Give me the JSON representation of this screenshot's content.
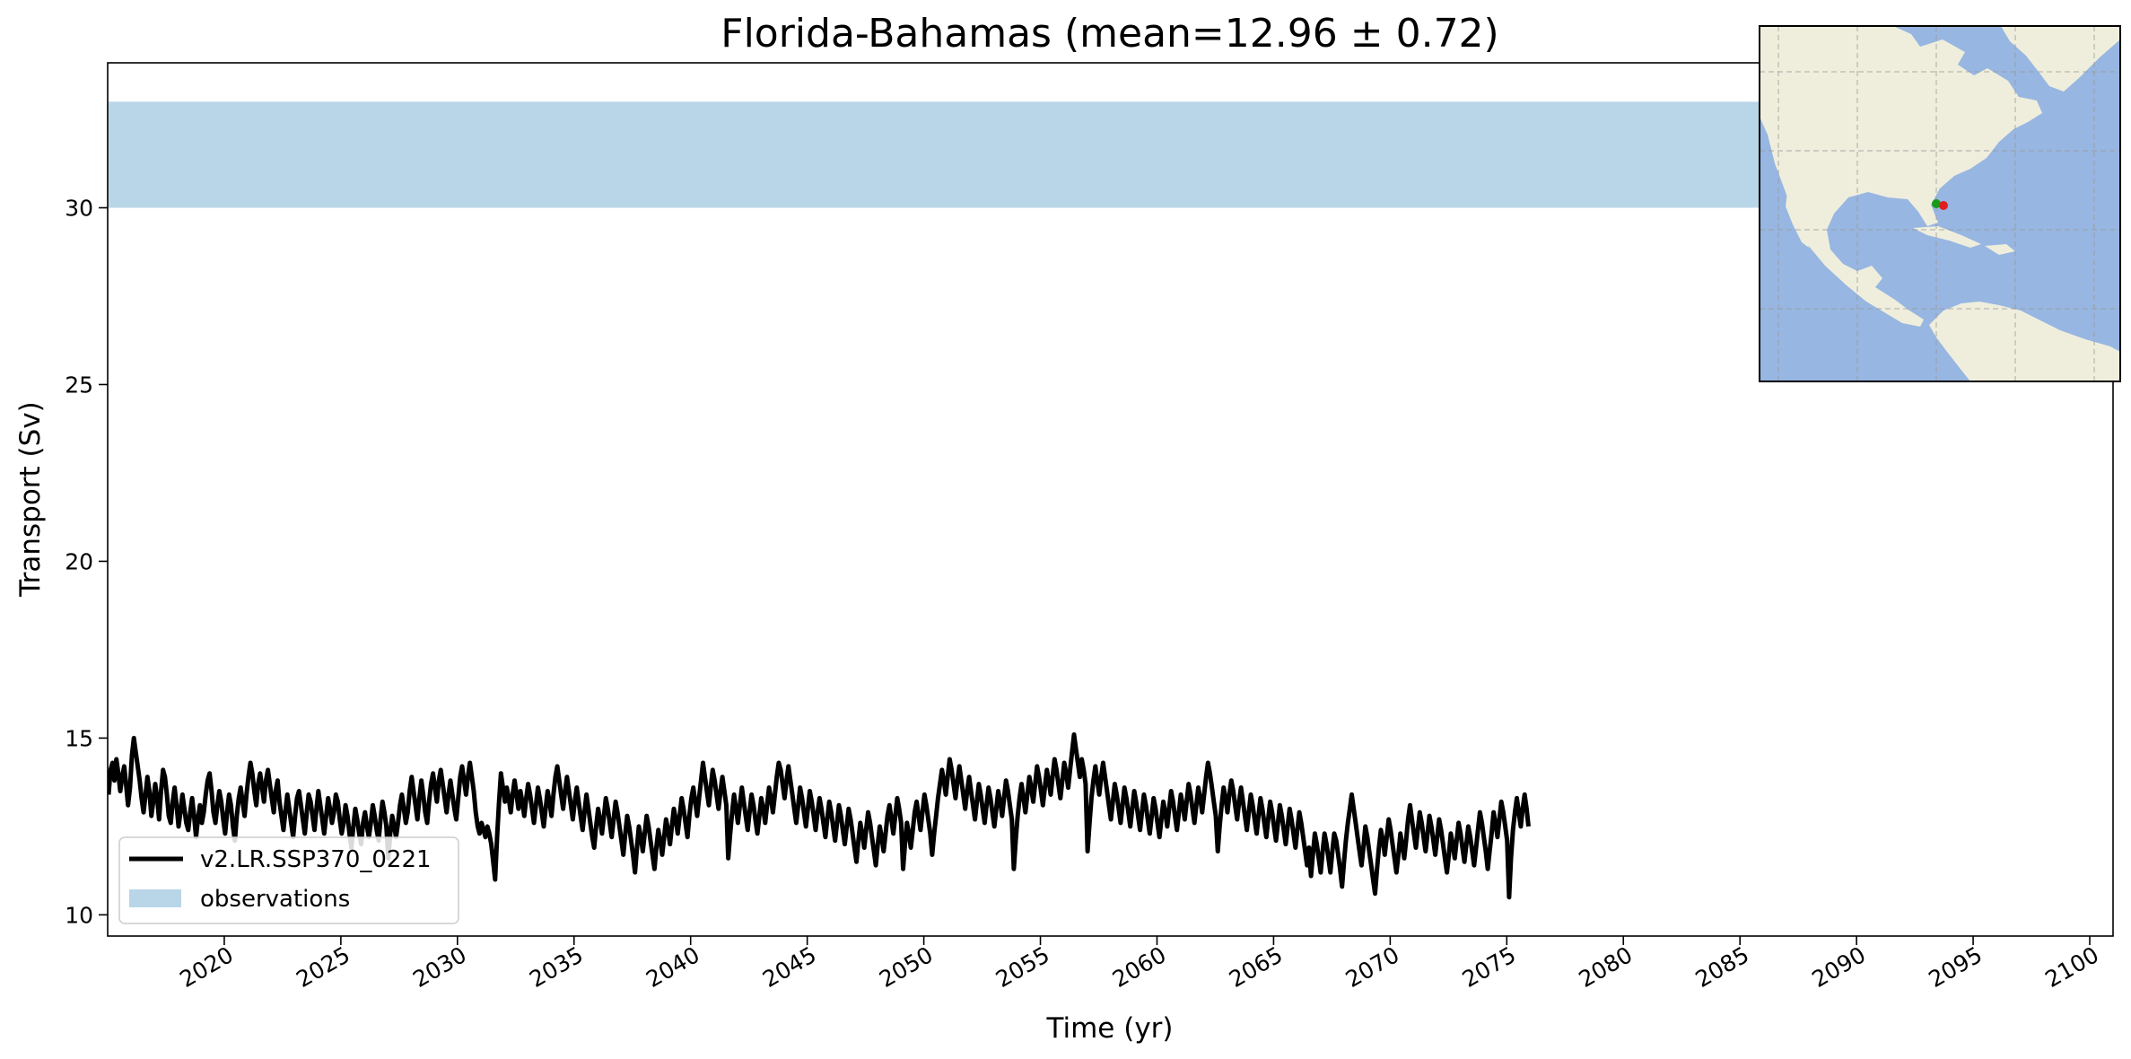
{
  "chart_data": {
    "type": "line",
    "title": "Florida-Bahamas (mean=12.96 ± 0.72)",
    "xlabel": "Time (yr)",
    "ylabel": "Transport (Sv)",
    "xlim": [
      2015,
      2101
    ],
    "ylim": [
      9.4,
      34.1
    ],
    "x_ticks": [
      2020,
      2025,
      2030,
      2035,
      2040,
      2045,
      2050,
      2055,
      2060,
      2065,
      2070,
      2075,
      2080,
      2085,
      2090,
      2095,
      2100
    ],
    "x_tick_labels": [
      "2020",
      "2025",
      "2030",
      "2035",
      "2040",
      "2045",
      "2050",
      "2055",
      "2060",
      "2065",
      "2070",
      "2075",
      "2080",
      "2085",
      "2090",
      "2095",
      "2100"
    ],
    "y_ticks": [
      10,
      15,
      20,
      25,
      30
    ],
    "y_tick_labels": [
      "10",
      "15",
      "20",
      "25",
      "30"
    ],
    "grid": false,
    "legend_position": "lower-left",
    "series": [
      {
        "name": "v2.LR.SSP370_0221",
        "color": "#000000",
        "x_start": 2015.04,
        "x_step": 0.0833,
        "values": [
          13.4,
          14.1,
          14.3,
          13.8,
          14.4,
          14.0,
          13.5,
          13.9,
          14.2,
          13.7,
          13.1,
          13.6,
          14.5,
          15.0,
          14.6,
          14.2,
          13.8,
          13.3,
          12.9,
          13.4,
          13.9,
          13.5,
          12.8,
          13.2,
          13.7,
          13.3,
          12.7,
          13.5,
          14.1,
          13.9,
          13.4,
          12.8,
          12.6,
          13.2,
          13.6,
          13.1,
          12.5,
          12.9,
          13.4,
          13.0,
          12.6,
          12.4,
          12.9,
          13.3,
          12.8,
          12.2,
          12.7,
          13.1,
          12.6,
          12.9,
          13.4,
          13.8,
          14.0,
          13.5,
          12.9,
          12.6,
          13.1,
          13.5,
          13.2,
          12.7,
          12.3,
          12.9,
          13.4,
          13.1,
          12.5,
          12.1,
          12.8,
          13.3,
          13.6,
          13.2,
          12.8,
          13.4,
          13.9,
          14.3,
          14.0,
          13.5,
          13.1,
          13.7,
          14.0,
          13.6,
          13.2,
          13.8,
          14.1,
          13.7,
          13.3,
          12.9,
          13.5,
          13.8,
          13.2,
          12.8,
          12.4,
          12.9,
          13.4,
          13.0,
          12.6,
          12.2,
          12.8,
          13.3,
          13.5,
          13.1,
          12.7,
          12.3,
          12.9,
          13.4,
          13.2,
          12.8,
          12.4,
          13.0,
          13.5,
          13.1,
          12.7,
          12.3,
          12.8,
          13.3,
          13.0,
          12.6,
          12.9,
          13.4,
          13.2,
          12.7,
          12.3,
          12.6,
          13.1,
          12.8,
          12.3,
          11.9,
          12.5,
          13.0,
          12.7,
          12.3,
          12.0,
          12.6,
          12.9,
          12.5,
          12.2,
          12.6,
          13.1,
          12.8,
          12.4,
          12.1,
          12.7,
          13.2,
          12.9,
          12.5,
          11.6,
          12.3,
          12.8,
          12.5,
          12.2,
          12.6,
          13.1,
          13.4,
          13.0,
          12.6,
          12.9,
          13.5,
          13.9,
          13.5,
          13.1,
          12.7,
          13.3,
          13.8,
          13.4,
          12.9,
          12.6,
          13.2,
          13.7,
          14.0,
          13.6,
          13.2,
          13.8,
          14.1,
          13.7,
          13.3,
          12.9,
          13.4,
          13.8,
          13.4,
          13.0,
          12.7,
          13.3,
          13.9,
          14.2,
          13.8,
          13.4,
          13.9,
          14.3,
          13.9,
          13.5,
          12.9,
          12.5,
          12.3,
          12.6,
          12.4,
          12.2,
          12.5,
          12.3,
          12.0,
          11.5,
          11.0,
          12.2,
          13.2,
          14.0,
          13.6,
          13.2,
          13.6,
          13.3,
          12.9,
          13.4,
          13.8,
          13.4,
          13.0,
          13.5,
          13.2,
          12.8,
          13.3,
          13.7,
          13.4,
          13.0,
          12.6,
          13.1,
          13.6,
          13.3,
          12.9,
          12.5,
          13.0,
          13.5,
          13.2,
          12.8,
          13.4,
          13.9,
          14.2,
          13.8,
          13.4,
          13.0,
          13.5,
          13.9,
          13.5,
          13.1,
          12.7,
          13.2,
          13.6,
          13.2,
          12.8,
          12.4,
          12.9,
          13.4,
          13.0,
          12.6,
          12.2,
          11.9,
          12.5,
          13.0,
          12.7,
          12.3,
          12.8,
          13.3,
          13.0,
          12.6,
          12.2,
          12.7,
          13.2,
          12.9,
          12.5,
          12.1,
          11.7,
          12.3,
          12.8,
          12.5,
          12.1,
          11.7,
          11.2,
          11.9,
          12.5,
          12.2,
          11.8,
          12.3,
          12.8,
          12.5,
          12.1,
          11.7,
          11.3,
          11.9,
          12.4,
          12.1,
          11.7,
          12.2,
          12.7,
          12.4,
          12.0,
          12.5,
          13.0,
          12.7,
          12.3,
          12.8,
          13.3,
          13.0,
          12.6,
          12.2,
          12.8,
          13.3,
          13.6,
          13.2,
          12.8,
          13.3,
          13.8,
          14.3,
          13.9,
          13.5,
          13.1,
          13.6,
          14.1,
          13.8,
          13.4,
          13.0,
          13.5,
          13.9,
          13.5,
          13.1,
          11.6,
          12.3,
          12.9,
          13.4,
          13.0,
          12.6,
          13.1,
          13.6,
          13.2,
          12.8,
          12.4,
          12.9,
          13.4,
          13.1,
          12.7,
          12.3,
          12.8,
          13.3,
          13.0,
          12.6,
          13.1,
          13.6,
          13.3,
          12.9,
          13.4,
          13.9,
          14.3,
          14.1,
          13.7,
          13.3,
          13.8,
          14.2,
          13.8,
          13.4,
          13.0,
          12.6,
          13.1,
          13.6,
          13.3,
          12.9,
          12.5,
          13.0,
          13.5,
          13.2,
          12.8,
          12.4,
          12.9,
          13.3,
          13.0,
          12.6,
          12.2,
          12.7,
          13.2,
          12.9,
          12.5,
          12.1,
          12.6,
          13.1,
          12.8,
          12.4,
          12.0,
          12.5,
          13.0,
          12.7,
          12.3,
          11.9,
          11.5,
          12.1,
          12.6,
          12.3,
          11.9,
          12.4,
          12.9,
          12.6,
          12.2,
          11.8,
          11.4,
          12.0,
          12.5,
          12.2,
          11.8,
          12.3,
          12.8,
          13.1,
          12.7,
          12.3,
          12.8,
          13.3,
          13.0,
          12.6,
          11.3,
          12.0,
          12.6,
          12.3,
          11.9,
          12.4,
          12.9,
          13.2,
          12.8,
          12.4,
          12.9,
          13.4,
          13.1,
          12.7,
          12.3,
          11.7,
          12.3,
          12.8,
          13.3,
          13.7,
          14.1,
          13.8,
          13.4,
          13.9,
          14.4,
          14.1,
          13.7,
          13.3,
          13.8,
          14.2,
          13.8,
          13.4,
          13.0,
          13.5,
          13.9,
          13.5,
          13.1,
          12.7,
          13.2,
          13.7,
          13.4,
          13.0,
          12.6,
          13.1,
          13.6,
          13.3,
          12.9,
          12.5,
          13.0,
          13.5,
          13.2,
          12.8,
          13.3,
          13.8,
          13.5,
          13.1,
          12.7,
          11.3,
          12.1,
          12.8,
          13.3,
          13.7,
          13.3,
          12.9,
          13.4,
          13.9,
          13.6,
          13.2,
          13.7,
          14.2,
          13.9,
          13.5,
          13.1,
          13.6,
          14.1,
          13.8,
          13.4,
          13.9,
          14.4,
          14.1,
          13.7,
          13.3,
          13.8,
          14.3,
          14.0,
          13.6,
          14.1,
          14.6,
          15.1,
          14.7,
          14.3,
          13.9,
          14.4,
          14.1,
          13.7,
          11.8,
          12.6,
          13.3,
          13.8,
          14.2,
          13.8,
          13.4,
          13.9,
          14.3,
          13.9,
          13.5,
          13.1,
          12.7,
          13.2,
          13.7,
          13.4,
          13.0,
          12.6,
          13.1,
          13.6,
          13.3,
          12.9,
          12.5,
          13.0,
          13.5,
          13.2,
          12.8,
          12.4,
          12.9,
          13.4,
          13.1,
          12.7,
          12.3,
          12.8,
          13.3,
          13.0,
          12.6,
          12.2,
          12.7,
          13.2,
          12.9,
          12.5,
          13.0,
          13.5,
          13.2,
          12.8,
          12.4,
          12.9,
          13.4,
          13.1,
          12.7,
          13.2,
          13.7,
          13.4,
          13.0,
          12.6,
          13.1,
          13.6,
          13.3,
          12.9,
          13.4,
          13.9,
          14.3,
          14.0,
          13.6,
          13.2,
          12.8,
          11.8,
          12.5,
          13.1,
          13.6,
          13.3,
          12.9,
          13.4,
          13.8,
          13.5,
          13.1,
          12.7,
          13.2,
          13.6,
          13.2,
          12.8,
          12.4,
          12.9,
          13.4,
          13.1,
          12.7,
          12.3,
          12.8,
          13.3,
          13.0,
          12.6,
          12.2,
          12.7,
          13.2,
          12.9,
          12.5,
          12.1,
          12.6,
          13.1,
          12.8,
          12.4,
          12.0,
          12.5,
          13.0,
          12.7,
          12.3,
          11.9,
          12.4,
          12.9,
          12.6,
          12.2,
          11.8,
          11.4,
          11.9,
          11.1,
          11.7,
          12.3,
          12.0,
          11.6,
          11.2,
          11.8,
          12.3,
          12.0,
          11.6,
          11.2,
          11.8,
          12.3,
          12.1,
          11.7,
          11.3,
          10.8,
          11.5,
          12.1,
          12.6,
          13.0,
          13.4,
          13.0,
          12.6,
          12.2,
          11.8,
          11.4,
          11.9,
          12.5,
          12.2,
          11.8,
          11.4,
          11.0,
          10.6,
          11.3,
          11.9,
          12.4,
          12.1,
          11.7,
          12.2,
          12.7,
          12.4,
          12.0,
          11.6,
          11.2,
          11.7,
          12.3,
          12.0,
          11.6,
          12.1,
          12.7,
          13.1,
          12.7,
          12.3,
          11.9,
          12.4,
          12.9,
          12.6,
          12.2,
          11.8,
          12.3,
          12.8,
          12.5,
          12.1,
          11.7,
          12.2,
          12.7,
          12.4,
          12.0,
          11.6,
          11.2,
          11.7,
          12.3,
          12.0,
          11.6,
          12.1,
          12.6,
          12.3,
          11.9,
          11.5,
          12.0,
          12.5,
          12.2,
          11.8,
          11.4,
          11.9,
          12.4,
          12.9,
          12.6,
          12.2,
          11.8,
          11.3,
          11.8,
          12.3,
          12.9,
          12.6,
          12.2,
          12.7,
          13.2,
          12.9,
          12.5,
          12.1,
          10.5,
          11.6,
          12.4,
          12.9,
          13.3,
          12.9,
          12.5,
          13.0,
          13.4,
          13.0,
          12.5
        ]
      }
    ],
    "observations": {
      "name": "observations",
      "y_range": [
        30.0,
        33.0
      ],
      "color": "#b9d6e8"
    },
    "inset_map": {
      "land_color": "#efeedd",
      "ocean_color": "#97b6e1",
      "markers": [
        {
          "color": "#1a9a1a"
        },
        {
          "color": "#e02020"
        }
      ]
    }
  }
}
